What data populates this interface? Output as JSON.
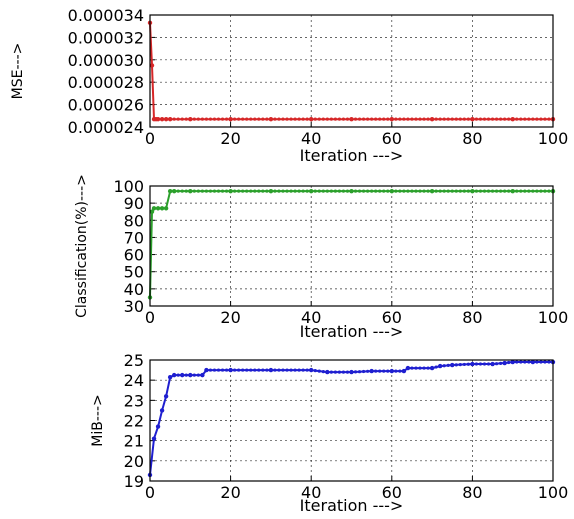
{
  "chart_data": [
    {
      "type": "line",
      "ylabel": "MSE--->",
      "xlabel": "Iteration --->",
      "xlim": [
        0,
        100
      ],
      "ylim": [
        2.4e-05,
        3.4e-05
      ],
      "xticks": [
        "0",
        "20",
        "40",
        "60",
        "80",
        "100"
      ],
      "yticks": [
        "0.000024",
        "0.000026",
        "0.000028",
        "0.000030",
        "0.000032",
        "0.000034"
      ],
      "grid": true,
      "color": "#d62728",
      "series": [
        {
          "x": [
            0,
            0.5,
            1,
            1.5,
            2,
            3,
            4,
            5,
            10,
            20,
            30,
            40,
            50,
            60,
            70,
            80,
            90,
            100
          ],
          "values": [
            3.33e-05,
            2.95e-05,
            2.47e-05,
            2.47e-05,
            2.47e-05,
            2.47e-05,
            2.47e-05,
            2.47e-05,
            2.47e-05,
            2.47e-05,
            2.47e-05,
            2.47e-05,
            2.47e-05,
            2.47e-05,
            2.47e-05,
            2.47e-05,
            2.47e-05,
            2.47e-05
          ]
        }
      ]
    },
    {
      "type": "line",
      "ylabel": "Classification(%)--->",
      "xlabel": "Iteration --->",
      "xlim": [
        0,
        100
      ],
      "ylim": [
        30,
        100
      ],
      "xticks": [
        "0",
        "20",
        "40",
        "60",
        "80",
        "100"
      ],
      "yticks": [
        "30",
        "40",
        "50",
        "60",
        "70",
        "80",
        "90",
        "100"
      ],
      "grid": true,
      "color": "#2ca02c",
      "series": [
        {
          "x": [
            0,
            0.5,
            1,
            2,
            3,
            4,
            5,
            6,
            10,
            20,
            30,
            40,
            50,
            60,
            70,
            80,
            90,
            100
          ],
          "values": [
            35,
            85,
            87,
            87,
            87,
            87,
            97,
            97,
            97,
            97,
            97,
            97,
            97,
            97,
            97,
            97,
            97,
            97
          ]
        }
      ]
    },
    {
      "type": "line",
      "ylabel": "MiB--->",
      "xlabel": "Iteration --->",
      "xlim": [
        0,
        100
      ],
      "ylim": [
        19,
        25
      ],
      "xticks": [
        "0",
        "20",
        "40",
        "60",
        "80",
        "100"
      ],
      "yticks": [
        "19",
        "20",
        "21",
        "22",
        "23",
        "24",
        "25"
      ],
      "grid": true,
      "color": "#1f1fd0",
      "series": [
        {
          "x": [
            0,
            1,
            2,
            3,
            4,
            5,
            6,
            8,
            10,
            13,
            14,
            20,
            30,
            40,
            44,
            50,
            55,
            60,
            63,
            64,
            70,
            72,
            75,
            80,
            85,
            88,
            90,
            95,
            100
          ],
          "values": [
            19.3,
            21.1,
            21.7,
            22.5,
            23.2,
            24.15,
            24.25,
            24.25,
            24.25,
            24.25,
            24.5,
            24.5,
            24.5,
            24.5,
            24.4,
            24.4,
            24.45,
            24.45,
            24.45,
            24.6,
            24.6,
            24.7,
            24.75,
            24.8,
            24.8,
            24.85,
            24.9,
            24.9,
            24.9
          ]
        }
      ]
    }
  ]
}
